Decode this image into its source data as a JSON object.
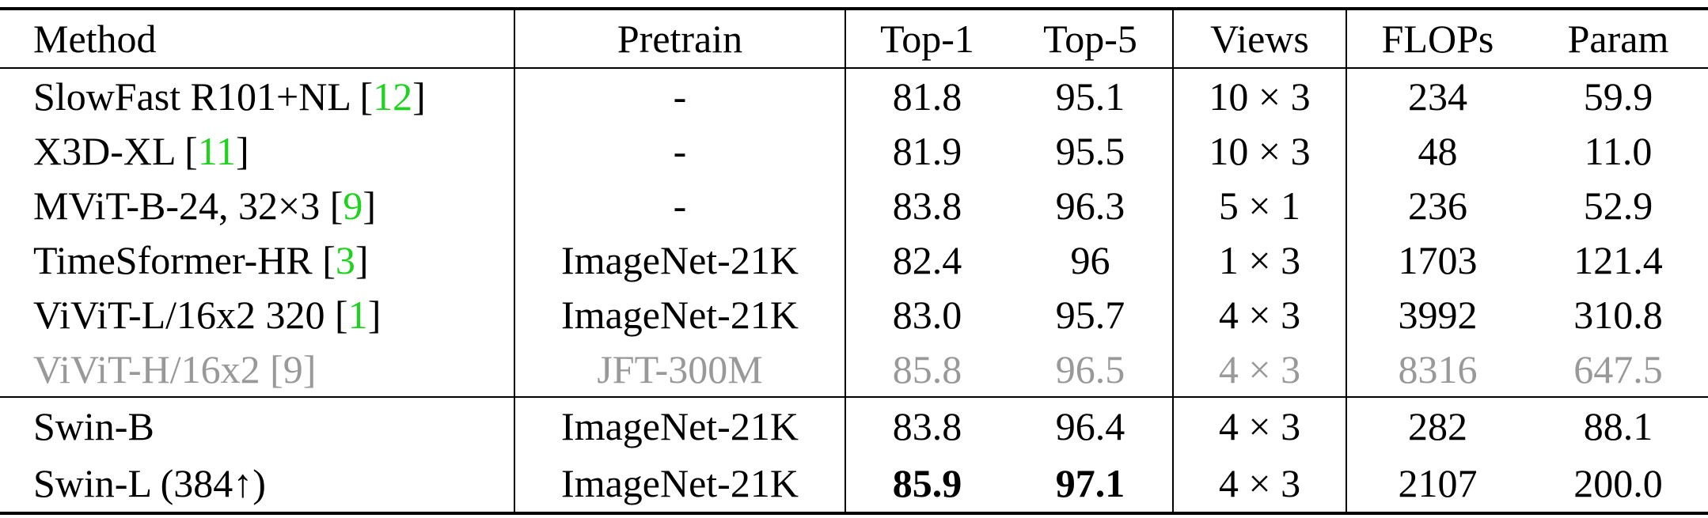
{
  "table": {
    "header": [
      "Method",
      "Pretrain",
      "Top-1",
      "Top-5",
      "Views",
      "FLOPs",
      "Param"
    ],
    "rows": [
      {
        "method": {
          "text": "SlowFast R101+NL [",
          "ref": "12",
          "close": "]"
        },
        "cells": [
          "-",
          "81.8",
          "95.1",
          "10 × 3",
          "234",
          "59.9"
        ]
      },
      {
        "method": {
          "text": "X3D-XL [",
          "ref": "11",
          "close": "]"
        },
        "cells": [
          "-",
          "81.9",
          "95.5",
          "10 × 3",
          "48",
          "11.0"
        ]
      },
      {
        "method": {
          "text": "MViT-B-24, 32×3 [",
          "ref": "9",
          "close": "]"
        },
        "cells": [
          "-",
          "83.8",
          "96.3",
          "5 × 1",
          "236",
          "52.9"
        ]
      },
      {
        "method": {
          "text": "TimeSformer-HR [",
          "ref": "3",
          "close": "]"
        },
        "cells": [
          "ImageNet-21K",
          "82.4",
          "96",
          "1 × 3",
          "1703",
          "121.4"
        ]
      },
      {
        "method": {
          "text": "ViViT-L/16x2 320 [",
          "ref": "1",
          "close": "]"
        },
        "cells": [
          "ImageNet-21K",
          "83.0",
          "95.7",
          "4 × 3",
          "3992",
          "310.8"
        ]
      },
      {
        "method": {
          "text": "ViViT-H/16x2 [",
          "ref": "9",
          "close": "]"
        },
        "cells": [
          "JFT-300M",
          "85.8",
          "96.5",
          "4 × 3",
          "8316",
          "647.5"
        ],
        "muted": true
      },
      {
        "method": {
          "text": "Swin-B"
        },
        "cells": [
          "ImageNet-21K",
          "83.8",
          "96.4",
          "4 × 3",
          "282",
          "88.1"
        ],
        "group_start": true
      },
      {
        "method": {
          "text": "Swin-L (384↑)"
        },
        "cells": [
          "ImageNet-21K",
          "85.9",
          "97.1",
          "4 × 3",
          "2107",
          "200.0"
        ],
        "bold": [
          1,
          2
        ]
      }
    ]
  }
}
